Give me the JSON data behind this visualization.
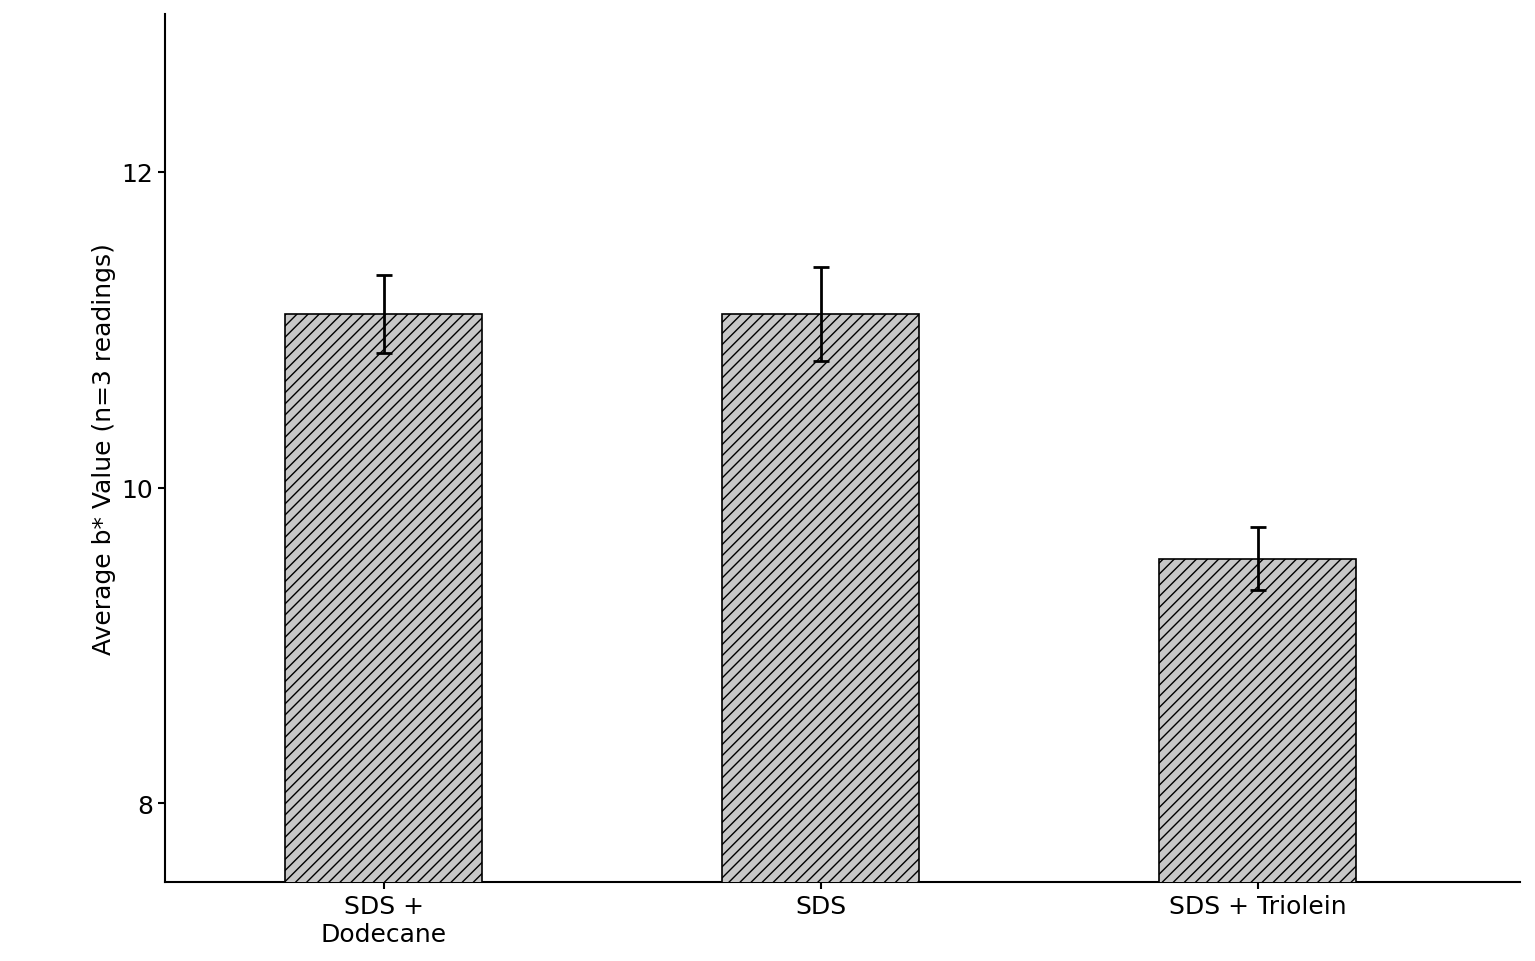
{
  "categories": [
    "SDS +\nDodecane",
    "SDS",
    "SDS + Triolein"
  ],
  "values": [
    11.1,
    11.1,
    9.55
  ],
  "errors": [
    0.25,
    0.3,
    0.2
  ],
  "ylabel": "Average b* Value (n=3 readings)",
  "ylim": [
    7.5,
    13.0
  ],
  "yticks": [
    8,
    10,
    12
  ],
  "bar_color": "#c8c8c8",
  "hatch": "///",
  "bar_width": 0.45,
  "bar_positions": [
    0.5,
    1.5,
    2.5
  ],
  "xlim": [
    0.0,
    3.1
  ],
  "background_color": "#ffffff",
  "tick_labelsize": 18,
  "ylabel_fontsize": 18,
  "capsize": 6,
  "elinewidth": 2,
  "ecapthick": 2
}
